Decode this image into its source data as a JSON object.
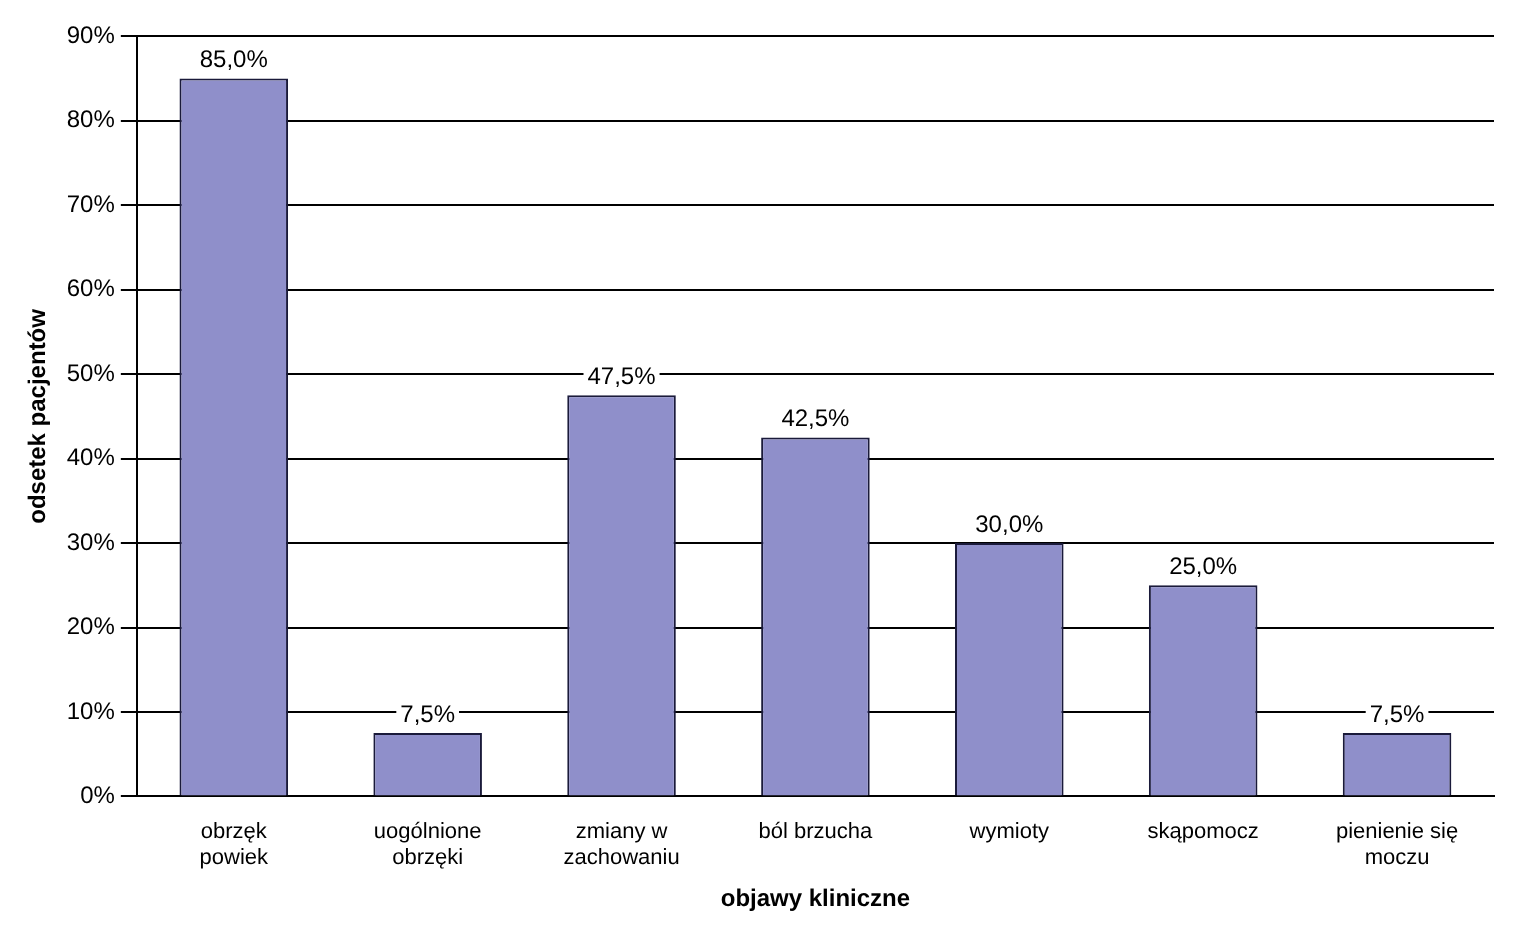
{
  "chart_data": {
    "type": "bar",
    "xlabel": "objawy kliniczne",
    "ylabel": "odsetek pacjentów",
    "categories": [
      "obrzęk powiek",
      "uogólnione obrzęki",
      "zmiany w zachowaniu",
      "ból brzucha",
      "wymioty",
      "skąpomocz",
      "pienienie się moczu"
    ],
    "values": [
      85.0,
      7.5,
      47.5,
      42.5,
      30.0,
      25.0,
      7.5
    ],
    "value_labels": [
      "85,0%",
      "7,5%",
      "47,5%",
      "42,5%",
      "30,0%",
      "25,0%",
      "7,5%"
    ],
    "color": "#8f8fca",
    "ylim": [
      0,
      90
    ],
    "yticks": [
      {
        "value": 0,
        "label": "0%"
      },
      {
        "value": 10,
        "label": "10%"
      },
      {
        "value": 20,
        "label": "20%"
      },
      {
        "value": 30,
        "label": "30%"
      },
      {
        "value": 40,
        "label": "40%"
      },
      {
        "value": 50,
        "label": "50%"
      },
      {
        "value": 60,
        "label": "60%"
      },
      {
        "value": 70,
        "label": "70%"
      },
      {
        "value": 80,
        "label": "80%"
      },
      {
        "value": 90,
        "label": "90%"
      }
    ],
    "grid": "y",
    "legend": false
  }
}
